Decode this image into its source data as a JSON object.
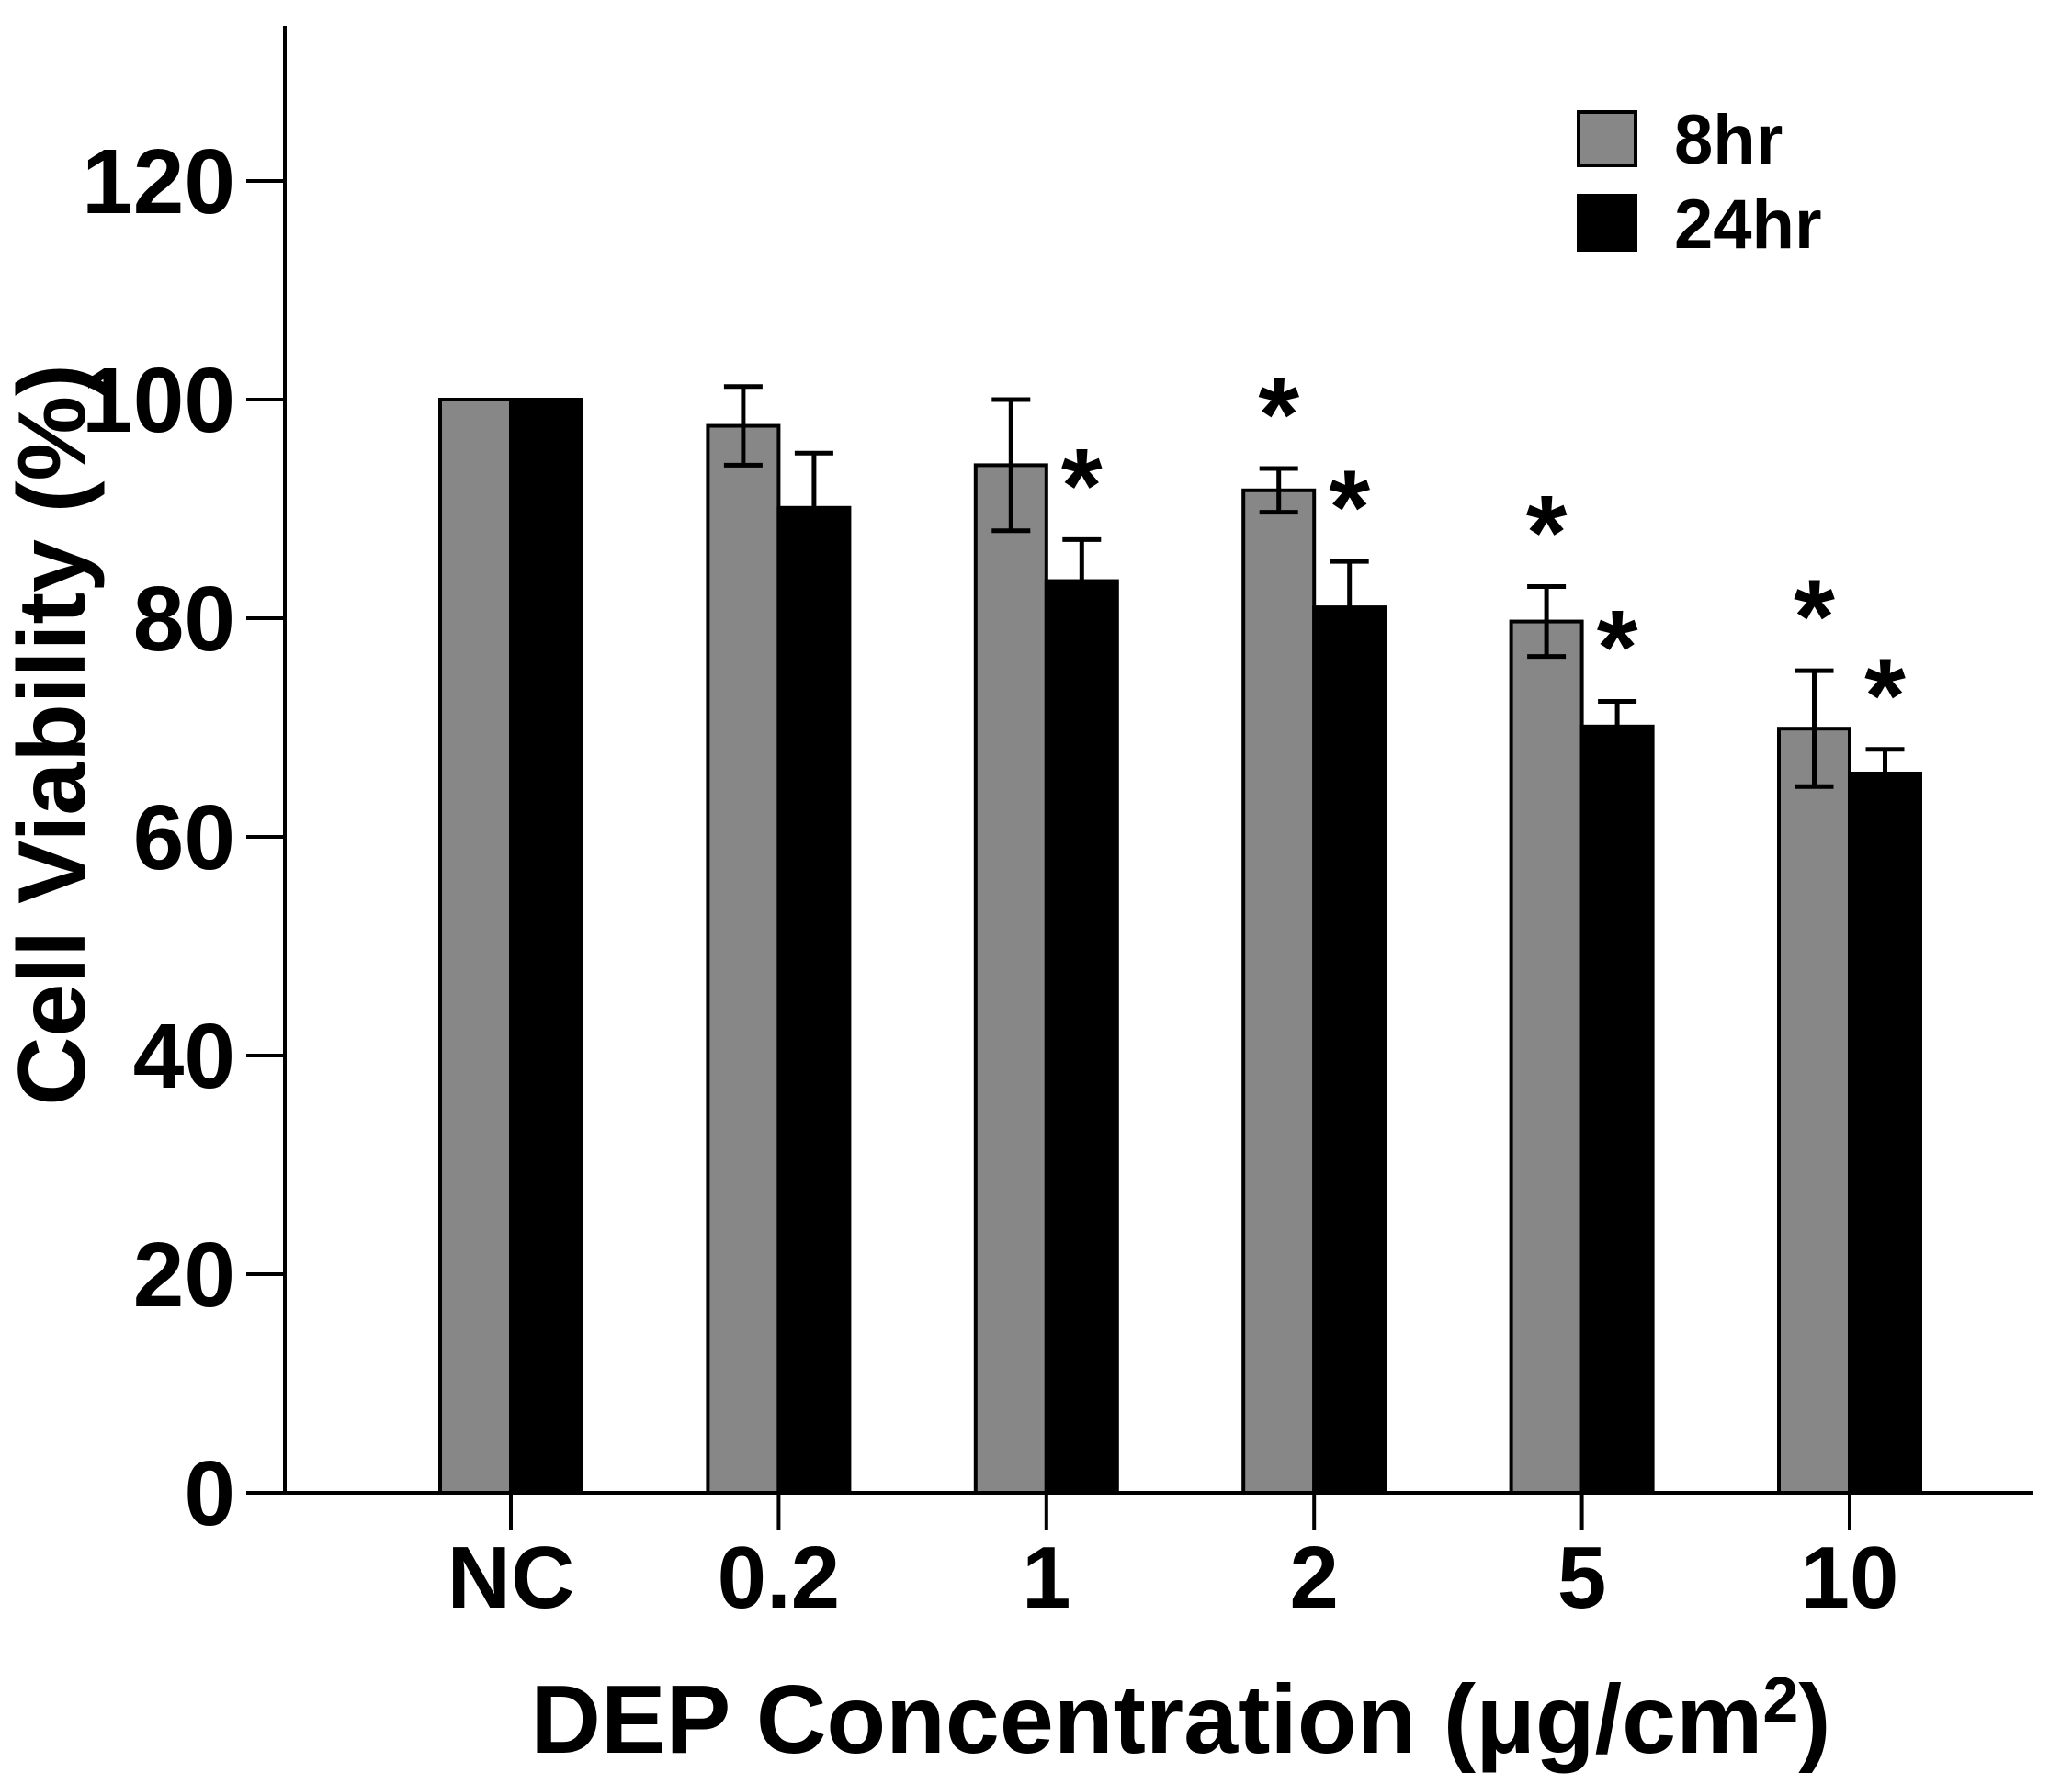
{
  "chart_data": {
    "type": "bar",
    "title": "",
    "ylabel": "Cell Viability (%)",
    "xlabel_parts": {
      "main": "DEP Concentration (μg/cm",
      "sup": "2",
      "close": ")"
    },
    "categories": [
      "NC",
      "0.2",
      "1",
      "2",
      "5",
      "10"
    ],
    "series": [
      {
        "name": "8hr",
        "color": "#878787",
        "values": [
          100,
          97.6,
          94.0,
          91.7,
          79.7,
          69.9
        ],
        "errors": [
          null,
          3.6,
          6.0,
          2.0,
          3.2,
          5.3
        ],
        "significant": [
          false,
          false,
          false,
          true,
          true,
          true
        ]
      },
      {
        "name": "24hr",
        "color": "#000000",
        "values": [
          100,
          90.1,
          83.4,
          81.0,
          70.1,
          65.8
        ],
        "errors": [
          null,
          5.0,
          3.8,
          4.2,
          2.3,
          2.2
        ],
        "significant": [
          false,
          false,
          true,
          true,
          true,
          true
        ]
      }
    ],
    "ylim": [
      0,
      134
    ],
    "yticks": [
      0,
      20,
      40,
      60,
      80,
      100,
      120
    ],
    "grid": false,
    "legend_position": "top-right",
    "significance_marker": "*",
    "error_bar_style": "caps-both-ends-on-gray, upper-only-visible-on-black",
    "axis_color": "#000000",
    "background_color": "#ffffff"
  },
  "legend": {
    "items": [
      {
        "label": "8hr"
      },
      {
        "label": "24hr"
      }
    ]
  }
}
